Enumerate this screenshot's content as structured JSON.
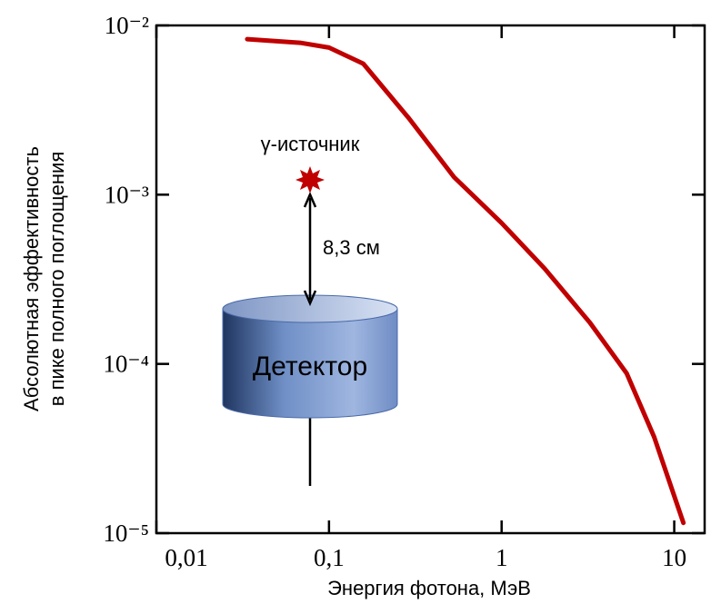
{
  "chart_data": {
    "type": "line",
    "xlabel": "Энергия фотона, МэВ",
    "ylabel": [
      "Абсолютная эффективность",
      "в пике полного поглощения"
    ],
    "x": [
      0.0336,
      0.068,
      0.1,
      0.158,
      0.29,
      0.53,
      1,
      1.77,
      3.25,
      5.3,
      7.65,
      11.3
    ],
    "values": [
      0.0083,
      0.0079,
      0.0074,
      0.00594,
      0.00283,
      0.00127,
      0.00068,
      0.000367,
      0.000175,
      8.8e-05,
      3.7e-05,
      1.15e-05
    ],
    "color": "#c00000",
    "xscale": "log",
    "yscale": "log",
    "xlim": [
      0.01,
      15
    ],
    "ylim": [
      1e-05,
      0.01
    ],
    "xticks": [
      {
        "value": 0.01,
        "label": "0,01"
      },
      {
        "value": 0.1,
        "label": "0,1"
      },
      1,
      10
    ],
    "yticks": [
      {
        "value": 0.01,
        "label": "10⁻²"
      },
      {
        "value": 0.001,
        "label": "10⁻³"
      },
      {
        "value": 0.0001,
        "label": "10⁻⁴"
      },
      {
        "value": 1e-05,
        "label": "10⁻⁵"
      }
    ],
    "annotations": [
      "γ-источник",
      "8,3 см",
      "Детектор"
    ]
  }
}
